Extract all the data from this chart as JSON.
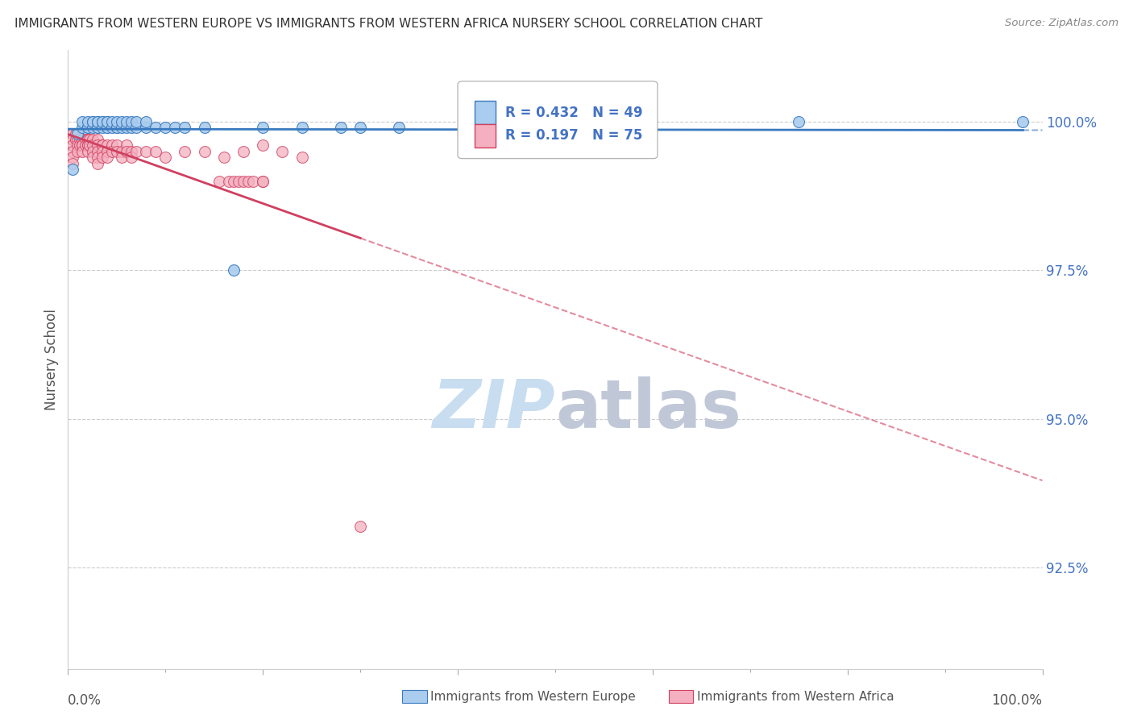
{
  "title": "IMMIGRANTS FROM WESTERN EUROPE VS IMMIGRANTS FROM WESTERN AFRICA NURSERY SCHOOL CORRELATION CHART",
  "source": "Source: ZipAtlas.com",
  "ylabel": "Nursery School",
  "ytick_labels": [
    "100.0%",
    "97.5%",
    "95.0%",
    "92.5%"
  ],
  "ytick_values": [
    1.0,
    0.975,
    0.95,
    0.925
  ],
  "xlim": [
    0.0,
    1.0
  ],
  "ylim": [
    0.908,
    1.012
  ],
  "legend_blue_R": "0.432",
  "legend_blue_N": "49",
  "legend_pink_R": "0.197",
  "legend_pink_N": "75",
  "blue_color": "#aaccee",
  "pink_color": "#f4b0c0",
  "blue_line_color": "#3a7abf",
  "pink_line_color": "#d04060",
  "text_color_blue": "#4472c4",
  "watermark_ZIP_color": "#c8ddf0",
  "watermark_atlas_color": "#c0c8d8",
  "background_color": "#ffffff",
  "blue_scatter_x": [
    0.005,
    0.01,
    0.015,
    0.015,
    0.02,
    0.02,
    0.02,
    0.025,
    0.025,
    0.025,
    0.03,
    0.03,
    0.03,
    0.03,
    0.035,
    0.035,
    0.035,
    0.04,
    0.04,
    0.04,
    0.04,
    0.045,
    0.045,
    0.05,
    0.05,
    0.05,
    0.055,
    0.055,
    0.06,
    0.06,
    0.065,
    0.065,
    0.07,
    0.07,
    0.08,
    0.08,
    0.09,
    0.1,
    0.11,
    0.12,
    0.14,
    0.17,
    0.2,
    0.24,
    0.28,
    0.3,
    0.34,
    0.75,
    0.98
  ],
  "blue_scatter_y": [
    0.992,
    0.998,
    0.999,
    1.0,
    0.999,
    0.999,
    1.0,
    0.999,
    1.0,
    1.0,
    0.999,
    0.999,
    1.0,
    1.0,
    0.999,
    1.0,
    1.0,
    0.999,
    0.999,
    1.0,
    1.0,
    0.999,
    1.0,
    0.999,
    0.999,
    1.0,
    0.999,
    1.0,
    0.999,
    1.0,
    0.999,
    1.0,
    0.999,
    1.0,
    0.999,
    1.0,
    0.999,
    0.999,
    0.999,
    0.999,
    0.999,
    0.975,
    0.999,
    0.999,
    0.999,
    0.999,
    0.999,
    1.0,
    1.0
  ],
  "pink_scatter_x": [
    0.005,
    0.005,
    0.005,
    0.005,
    0.005,
    0.005,
    0.008,
    0.008,
    0.01,
    0.01,
    0.01,
    0.01,
    0.012,
    0.012,
    0.015,
    0.015,
    0.015,
    0.015,
    0.015,
    0.018,
    0.018,
    0.02,
    0.02,
    0.02,
    0.02,
    0.02,
    0.022,
    0.022,
    0.025,
    0.025,
    0.025,
    0.025,
    0.03,
    0.03,
    0.03,
    0.03,
    0.03,
    0.035,
    0.035,
    0.035,
    0.035,
    0.04,
    0.04,
    0.04,
    0.045,
    0.045,
    0.05,
    0.05,
    0.055,
    0.055,
    0.06,
    0.06,
    0.065,
    0.065,
    0.07,
    0.08,
    0.09,
    0.1,
    0.12,
    0.14,
    0.16,
    0.18,
    0.2,
    0.22,
    0.24,
    0.155,
    0.165,
    0.17,
    0.175,
    0.18,
    0.185,
    0.19,
    0.2,
    0.2,
    0.3
  ],
  "pink_scatter_y": [
    0.998,
    0.997,
    0.996,
    0.995,
    0.994,
    0.993,
    0.998,
    0.997,
    0.998,
    0.997,
    0.996,
    0.995,
    0.997,
    0.996,
    0.997,
    0.997,
    0.996,
    0.996,
    0.995,
    0.997,
    0.996,
    0.997,
    0.997,
    0.996,
    0.996,
    0.995,
    0.997,
    0.996,
    0.997,
    0.996,
    0.995,
    0.994,
    0.997,
    0.996,
    0.995,
    0.994,
    0.993,
    0.996,
    0.996,
    0.995,
    0.994,
    0.996,
    0.995,
    0.994,
    0.996,
    0.995,
    0.996,
    0.995,
    0.995,
    0.994,
    0.996,
    0.995,
    0.995,
    0.994,
    0.995,
    0.995,
    0.995,
    0.994,
    0.995,
    0.995,
    0.994,
    0.995,
    0.996,
    0.995,
    0.994,
    0.99,
    0.99,
    0.99,
    0.99,
    0.99,
    0.99,
    0.99,
    0.99,
    0.99,
    0.932
  ]
}
